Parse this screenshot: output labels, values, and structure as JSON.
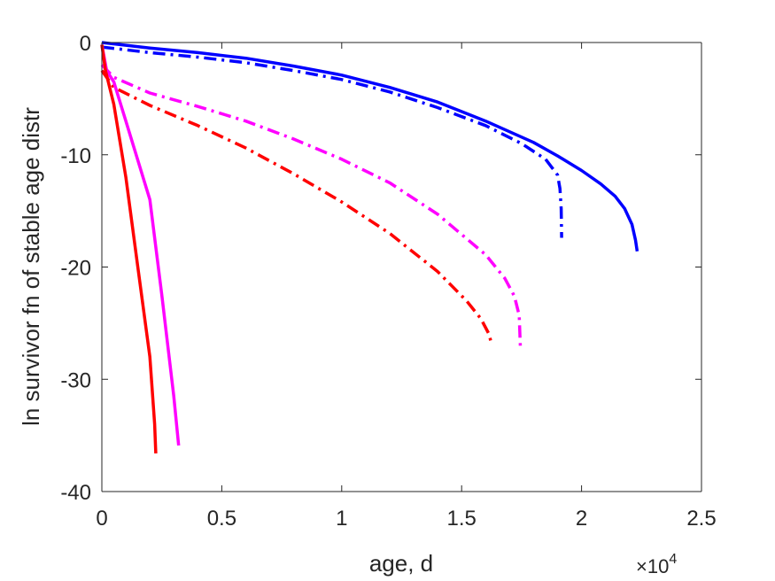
{
  "chart_data": {
    "type": "line",
    "xlabel": "age, d",
    "ylabel": "ln survivor fn of stable age distr",
    "x_exponent_label": "×10",
    "x_exponent_power": "4",
    "x_scale": 10000,
    "xlim": [
      0,
      2.5
    ],
    "ylim": [
      -40,
      0
    ],
    "xticks": [
      0,
      0.5,
      1,
      1.5,
      2,
      2.5
    ],
    "xtick_labels": [
      "0",
      "0.5",
      "1",
      "1.5",
      "2",
      "2.5"
    ],
    "yticks": [
      0,
      -10,
      -20,
      -30,
      -40
    ],
    "ytick_labels": [
      "0",
      "-10",
      "-20",
      "-30",
      "-40"
    ],
    "grid": false,
    "series": [
      {
        "color": "#0000ff",
        "dash": "solid",
        "points": [
          [
            0,
            0
          ],
          [
            0.2,
            -0.5
          ],
          [
            0.4,
            -0.9
          ],
          [
            0.6,
            -1.4
          ],
          [
            0.8,
            -2.1
          ],
          [
            1.0,
            -2.9
          ],
          [
            1.2,
            -4.0
          ],
          [
            1.4,
            -5.3
          ],
          [
            1.6,
            -7.0
          ],
          [
            1.8,
            -8.9
          ],
          [
            1.9,
            -10.1
          ],
          [
            2.0,
            -11.4
          ],
          [
            2.08,
            -12.6
          ],
          [
            2.14,
            -13.7
          ],
          [
            2.18,
            -14.8
          ],
          [
            2.21,
            -16.2
          ],
          [
            2.225,
            -17.6
          ],
          [
            2.232,
            -18.6
          ]
        ]
      },
      {
        "color": "#0000ff",
        "dash": "dashdot",
        "points": [
          [
            0,
            -0.4
          ],
          [
            0.2,
            -0.9
          ],
          [
            0.4,
            -1.3
          ],
          [
            0.6,
            -1.8
          ],
          [
            0.8,
            -2.5
          ],
          [
            1.0,
            -3.3
          ],
          [
            1.2,
            -4.4
          ],
          [
            1.4,
            -5.8
          ],
          [
            1.6,
            -7.4
          ],
          [
            1.75,
            -9.0
          ],
          [
            1.85,
            -10.4
          ],
          [
            1.9,
            -11.8
          ],
          [
            1.91,
            -13.0
          ],
          [
            1.915,
            -14.8
          ],
          [
            1.917,
            -17.4
          ]
        ]
      },
      {
        "color": "#ff00ff",
        "dash": "dashdot",
        "points": [
          [
            0,
            -2.0
          ],
          [
            0.05,
            -3.1
          ],
          [
            0.2,
            -4.5
          ],
          [
            0.4,
            -5.7
          ],
          [
            0.6,
            -7.0
          ],
          [
            0.8,
            -8.6
          ],
          [
            1.0,
            -10.4
          ],
          [
            1.2,
            -12.5
          ],
          [
            1.4,
            -15.3
          ],
          [
            1.6,
            -18.9
          ],
          [
            1.68,
            -21.0
          ],
          [
            1.72,
            -22.6
          ],
          [
            1.74,
            -24.3
          ],
          [
            1.745,
            -27.1
          ]
        ]
      },
      {
        "color": "#ff0000",
        "dash": "dashdot",
        "points": [
          [
            0,
            -2.5
          ],
          [
            0.05,
            -4.0
          ],
          [
            0.2,
            -5.6
          ],
          [
            0.4,
            -7.4
          ],
          [
            0.6,
            -9.4
          ],
          [
            0.8,
            -11.7
          ],
          [
            1.0,
            -14.2
          ],
          [
            1.2,
            -17.0
          ],
          [
            1.4,
            -20.4
          ],
          [
            1.52,
            -23.0
          ],
          [
            1.58,
            -24.6
          ],
          [
            1.615,
            -26.0
          ],
          [
            1.625,
            -26.9
          ]
        ]
      },
      {
        "color": "#ff00ff",
        "dash": "solid",
        "points": [
          [
            0,
            -0.2
          ],
          [
            0.02,
            -2.5
          ],
          [
            0.05,
            -3.5
          ],
          [
            0.1,
            -7.0
          ],
          [
            0.2,
            -14.0
          ],
          [
            0.25,
            -22.5
          ],
          [
            0.3,
            -31.5
          ],
          [
            0.32,
            -35.9
          ]
        ]
      },
      {
        "color": "#ff0000",
        "dash": "solid",
        "points": [
          [
            0,
            -0.2
          ],
          [
            0.015,
            -2.5
          ],
          [
            0.05,
            -5.5
          ],
          [
            0.1,
            -12.0
          ],
          [
            0.15,
            -20.0
          ],
          [
            0.2,
            -28.0
          ],
          [
            0.22,
            -34.0
          ],
          [
            0.225,
            -36.6
          ]
        ]
      }
    ]
  }
}
